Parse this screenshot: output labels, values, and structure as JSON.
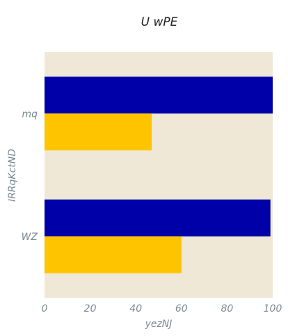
{
  "chart_data": {
    "type": "bar",
    "orientation": "horizontal",
    "title": "U wPE",
    "xlabel": "yezNJ",
    "ylabel": "IRRqKctND",
    "categories": [
      "mq",
      "WZ"
    ],
    "series": [
      {
        "values": [
          100,
          99
        ],
        "color": "#0000a8"
      },
      {
        "values": [
          47,
          60
        ],
        "color": "#ffc400"
      }
    ],
    "xlim": [
      0,
      100
    ],
    "xticks": [
      0,
      20,
      40,
      60,
      80,
      100
    ],
    "grid": false,
    "background": "#efe8d6"
  }
}
